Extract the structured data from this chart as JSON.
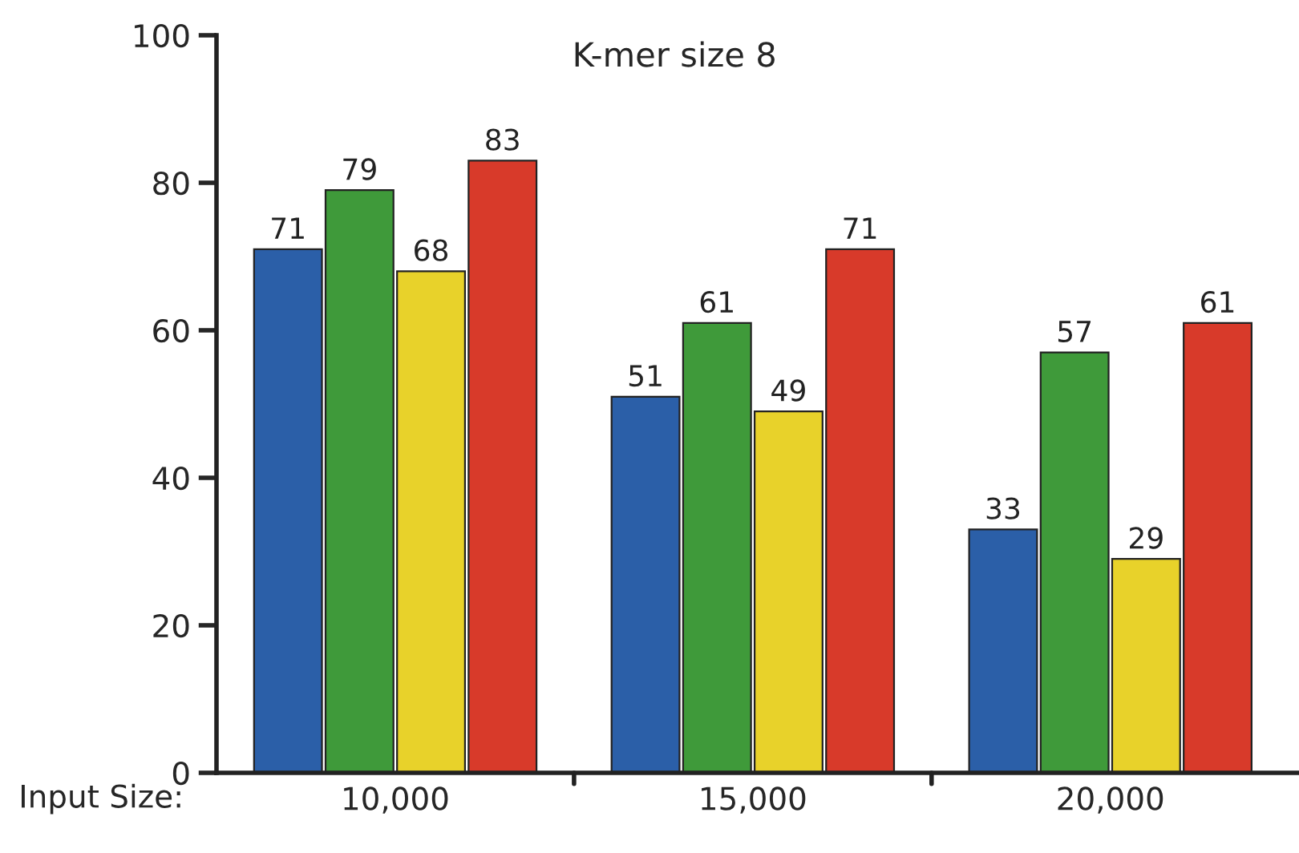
{
  "chart_data": {
    "type": "bar",
    "title": "K-mer size 8",
    "xlabel": "Input Size:",
    "categories": [
      "10,000",
      "15,000",
      "20,000"
    ],
    "series": [
      {
        "color": "#2b5fa8",
        "values": [
          71,
          51,
          33
        ]
      },
      {
        "color": "#3f9a3a",
        "values": [
          79,
          61,
          57
        ]
      },
      {
        "color": "#e8d22a",
        "values": [
          68,
          49,
          29
        ]
      },
      {
        "color": "#d83a2a",
        "values": [
          83,
          71,
          61
        ]
      }
    ],
    "ylim": [
      0,
      100
    ],
    "yticks": [
      0,
      20,
      40,
      60,
      80,
      100
    ],
    "data_labels": true,
    "grid": false,
    "legend": false
  }
}
